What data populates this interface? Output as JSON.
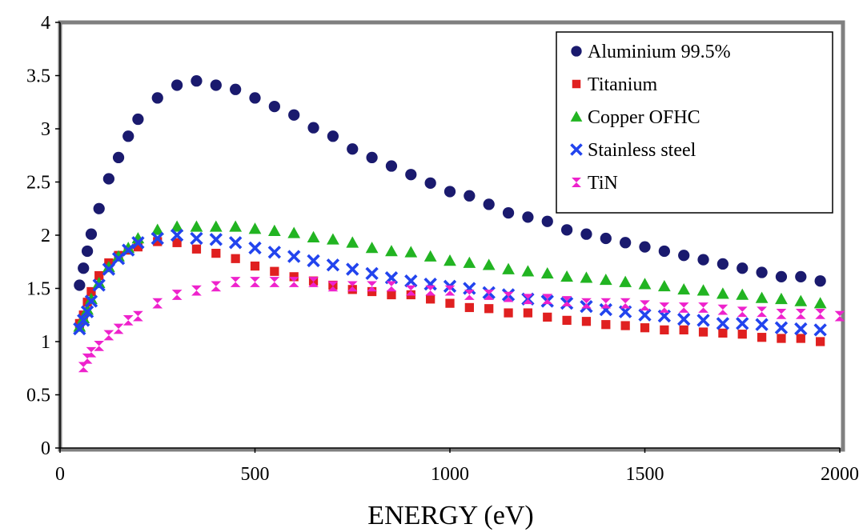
{
  "chart_data": {
    "type": "scatter",
    "title": "",
    "xlabel": "ENERGY (eV)",
    "ylabel": "",
    "xlim": [
      0,
      2000
    ],
    "ylim": [
      0,
      4
    ],
    "x_ticks": [
      "0",
      "500",
      "1000",
      "1500",
      "2000"
    ],
    "y_ticks": [
      "0",
      "0.5",
      "1",
      "1.5",
      "2",
      "2.5",
      "3",
      "3.5",
      "4"
    ],
    "grid": false,
    "legend_position": "top-right",
    "series": [
      {
        "name": "Aluminium 99.5%",
        "marker": "circle",
        "color": "#1a1a6e",
        "points": [
          [
            50,
            1.53
          ],
          [
            60,
            1.69
          ],
          [
            70,
            1.85
          ],
          [
            80,
            2.01
          ],
          [
            100,
            2.25
          ],
          [
            125,
            2.53
          ],
          [
            150,
            2.73
          ],
          [
            175,
            2.93
          ],
          [
            200,
            3.09
          ],
          [
            250,
            3.29
          ],
          [
            300,
            3.41
          ],
          [
            350,
            3.45
          ],
          [
            400,
            3.41
          ],
          [
            450,
            3.37
          ],
          [
            500,
            3.29
          ],
          [
            550,
            3.21
          ],
          [
            600,
            3.13
          ],
          [
            650,
            3.01
          ],
          [
            700,
            2.93
          ],
          [
            750,
            2.81
          ],
          [
            800,
            2.73
          ],
          [
            850,
            2.65
          ],
          [
            900,
            2.57
          ],
          [
            950,
            2.49
          ],
          [
            1000,
            2.41
          ],
          [
            1050,
            2.37
          ],
          [
            1100,
            2.29
          ],
          [
            1150,
            2.21
          ],
          [
            1200,
            2.17
          ],
          [
            1250,
            2.13
          ],
          [
            1300,
            2.05
          ],
          [
            1350,
            2.01
          ],
          [
            1400,
            1.97
          ],
          [
            1450,
            1.93
          ],
          [
            1500,
            1.89
          ],
          [
            1550,
            1.85
          ],
          [
            1600,
            1.81
          ],
          [
            1650,
            1.77
          ],
          [
            1700,
            1.73
          ],
          [
            1750,
            1.69
          ],
          [
            1800,
            1.65
          ],
          [
            1850,
            1.61
          ],
          [
            1900,
            1.61
          ],
          [
            1950,
            1.57
          ]
        ]
      },
      {
        "name": "Titanium",
        "marker": "square",
        "color": "#e02020",
        "points": [
          [
            50,
            1.17
          ],
          [
            60,
            1.25
          ],
          [
            70,
            1.37
          ],
          [
            80,
            1.47
          ],
          [
            100,
            1.62
          ],
          [
            125,
            1.74
          ],
          [
            150,
            1.81
          ],
          [
            175,
            1.86
          ],
          [
            200,
            1.89
          ],
          [
            250,
            1.94
          ],
          [
            300,
            1.93
          ],
          [
            350,
            1.87
          ],
          [
            400,
            1.83
          ],
          [
            450,
            1.78
          ],
          [
            500,
            1.71
          ],
          [
            550,
            1.66
          ],
          [
            600,
            1.61
          ],
          [
            650,
            1.57
          ],
          [
            700,
            1.53
          ],
          [
            750,
            1.49
          ],
          [
            800,
            1.47
          ],
          [
            850,
            1.44
          ],
          [
            900,
            1.44
          ],
          [
            950,
            1.4
          ],
          [
            1000,
            1.36
          ],
          [
            1050,
            1.32
          ],
          [
            1100,
            1.31
          ],
          [
            1150,
            1.27
          ],
          [
            1200,
            1.27
          ],
          [
            1250,
            1.23
          ],
          [
            1300,
            1.2
          ],
          [
            1350,
            1.19
          ],
          [
            1400,
            1.16
          ],
          [
            1450,
            1.15
          ],
          [
            1500,
            1.13
          ],
          [
            1550,
            1.11
          ],
          [
            1600,
            1.11
          ],
          [
            1650,
            1.09
          ],
          [
            1700,
            1.08
          ],
          [
            1750,
            1.07
          ],
          [
            1800,
            1.04
          ],
          [
            1850,
            1.03
          ],
          [
            1900,
            1.03
          ],
          [
            1950,
            1.0
          ]
        ]
      },
      {
        "name": "Copper OFHC",
        "marker": "triangle",
        "color": "#22b422",
        "points": [
          [
            50,
            1.14
          ],
          [
            60,
            1.22
          ],
          [
            70,
            1.3
          ],
          [
            80,
            1.4
          ],
          [
            100,
            1.55
          ],
          [
            125,
            1.7
          ],
          [
            150,
            1.8
          ],
          [
            175,
            1.88
          ],
          [
            200,
            1.97
          ],
          [
            250,
            2.05
          ],
          [
            300,
            2.08
          ],
          [
            350,
            2.08
          ],
          [
            400,
            2.08
          ],
          [
            450,
            2.08
          ],
          [
            500,
            2.06
          ],
          [
            550,
            2.04
          ],
          [
            600,
            2.02
          ],
          [
            650,
            1.98
          ],
          [
            700,
            1.96
          ],
          [
            750,
            1.93
          ],
          [
            800,
            1.88
          ],
          [
            850,
            1.85
          ],
          [
            900,
            1.84
          ],
          [
            950,
            1.8
          ],
          [
            1000,
            1.76
          ],
          [
            1050,
            1.74
          ],
          [
            1100,
            1.72
          ],
          [
            1150,
            1.68
          ],
          [
            1200,
            1.66
          ],
          [
            1250,
            1.64
          ],
          [
            1300,
            1.61
          ],
          [
            1350,
            1.6
          ],
          [
            1400,
            1.58
          ],
          [
            1450,
            1.56
          ],
          [
            1500,
            1.54
          ],
          [
            1550,
            1.52
          ],
          [
            1600,
            1.49
          ],
          [
            1650,
            1.48
          ],
          [
            1700,
            1.45
          ],
          [
            1750,
            1.44
          ],
          [
            1800,
            1.41
          ],
          [
            1850,
            1.4
          ],
          [
            1900,
            1.38
          ],
          [
            1950,
            1.36
          ]
        ]
      },
      {
        "name": "Stainless steel",
        "marker": "cross",
        "color": "#2244ee",
        "points": [
          [
            50,
            1.12
          ],
          [
            60,
            1.2
          ],
          [
            70,
            1.28
          ],
          [
            80,
            1.38
          ],
          [
            100,
            1.53
          ],
          [
            125,
            1.68
          ],
          [
            150,
            1.78
          ],
          [
            175,
            1.86
          ],
          [
            200,
            1.93
          ],
          [
            250,
            1.97
          ],
          [
            300,
            2.0
          ],
          [
            350,
            1.97
          ],
          [
            400,
            1.96
          ],
          [
            450,
            1.93
          ],
          [
            500,
            1.88
          ],
          [
            550,
            1.84
          ],
          [
            600,
            1.8
          ],
          [
            650,
            1.76
          ],
          [
            700,
            1.72
          ],
          [
            750,
            1.68
          ],
          [
            800,
            1.64
          ],
          [
            850,
            1.6
          ],
          [
            900,
            1.57
          ],
          [
            950,
            1.54
          ],
          [
            1000,
            1.52
          ],
          [
            1050,
            1.5
          ],
          [
            1100,
            1.46
          ],
          [
            1150,
            1.44
          ],
          [
            1200,
            1.4
          ],
          [
            1250,
            1.38
          ],
          [
            1300,
            1.36
          ],
          [
            1350,
            1.33
          ],
          [
            1400,
            1.3
          ],
          [
            1450,
            1.28
          ],
          [
            1500,
            1.25
          ],
          [
            1550,
            1.24
          ],
          [
            1600,
            1.21
          ],
          [
            1650,
            1.2
          ],
          [
            1700,
            1.17
          ],
          [
            1750,
            1.17
          ],
          [
            1800,
            1.16
          ],
          [
            1850,
            1.13
          ],
          [
            1900,
            1.12
          ],
          [
            1950,
            1.11
          ]
        ]
      },
      {
        "name": "TiN",
        "marker": "bowtie",
        "color": "#ee22cc",
        "points": [
          [
            60,
            0.76
          ],
          [
            70,
            0.84
          ],
          [
            80,
            0.9
          ],
          [
            100,
            0.96
          ],
          [
            125,
            1.06
          ],
          [
            150,
            1.12
          ],
          [
            175,
            1.2
          ],
          [
            200,
            1.24
          ],
          [
            250,
            1.36
          ],
          [
            300,
            1.44
          ],
          [
            350,
            1.48
          ],
          [
            400,
            1.52
          ],
          [
            450,
            1.56
          ],
          [
            500,
            1.56
          ],
          [
            550,
            1.56
          ],
          [
            600,
            1.56
          ],
          [
            650,
            1.56
          ],
          [
            700,
            1.52
          ],
          [
            750,
            1.52
          ],
          [
            800,
            1.52
          ],
          [
            850,
            1.52
          ],
          [
            900,
            1.48
          ],
          [
            950,
            1.48
          ],
          [
            1000,
            1.48
          ],
          [
            1050,
            1.44
          ],
          [
            1100,
            1.44
          ],
          [
            1150,
            1.42
          ],
          [
            1200,
            1.4
          ],
          [
            1250,
            1.4
          ],
          [
            1300,
            1.38
          ],
          [
            1350,
            1.36
          ],
          [
            1400,
            1.36
          ],
          [
            1450,
            1.36
          ],
          [
            1500,
            1.34
          ],
          [
            1550,
            1.32
          ],
          [
            1600,
            1.32
          ],
          [
            1650,
            1.32
          ],
          [
            1700,
            1.3
          ],
          [
            1750,
            1.28
          ],
          [
            1800,
            1.28
          ],
          [
            1850,
            1.26
          ],
          [
            1900,
            1.26
          ],
          [
            1950,
            1.26
          ],
          [
            2000,
            1.24
          ]
        ]
      }
    ]
  }
}
